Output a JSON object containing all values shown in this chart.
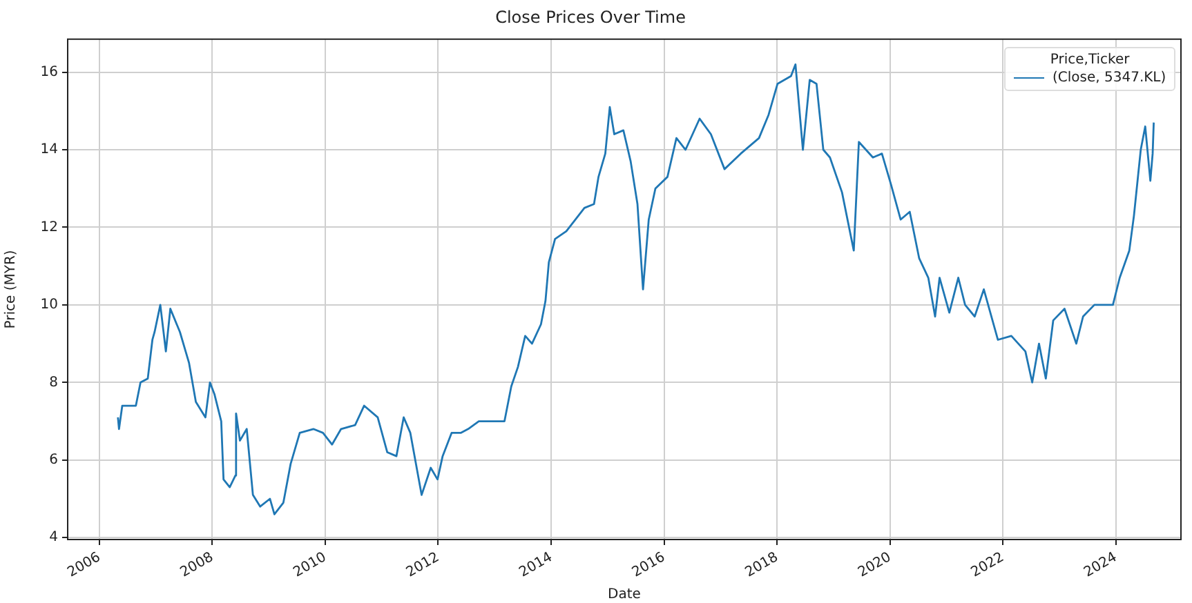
{
  "chart_data": {
    "type": "line",
    "title": "Close Prices Over Time",
    "xlabel": "Date",
    "ylabel": "Price (MYR)",
    "legend_title": "Price,Ticker",
    "legend": "top right",
    "grid": true,
    "marker": "none",
    "line_style": "solid",
    "xlim": [
      "2005-06-10",
      "2025-02-25"
    ],
    "xticks": [
      "2006",
      "2008",
      "2010",
      "2012",
      "2014",
      "2016",
      "2018",
      "2020",
      "2022",
      "2024"
    ],
    "ylim": [
      3.95,
      16.85
    ],
    "yticks": [
      4,
      6,
      8,
      10,
      12,
      14,
      16
    ],
    "x": [
      "2006-05-01",
      "2006-05-08",
      "2006-05-29",
      "2006-08-25",
      "2006-09-24",
      "2006-11-10",
      "2006-12-10",
      "2006-12-24",
      "2007-01-30",
      "2007-03-07",
      "2007-04-05",
      "2007-06-06",
      "2007-08-04",
      "2007-09-17",
      "2007-11-18",
      "2007-12-17",
      "2008-01-15",
      "2008-02-28",
      "2008-03-14",
      "2008-04-23",
      "2008-05-30",
      "2008-06-03",
      "2008-06-28",
      "2008-08-11",
      "2008-09-20",
      "2008-11-06",
      "2009-01-08",
      "2009-02-06",
      "2009-04-05",
      "2009-05-22",
      "2009-07-20",
      "2009-10-16",
      "2009-12-17",
      "2010-02-14",
      "2010-04-13",
      "2010-07-13",
      "2010-09-09",
      "2010-12-06",
      "2011-02-06",
      "2011-04-06",
      "2011-05-23",
      "2011-07-05",
      "2011-09-16",
      "2011-11-14",
      "2011-12-28",
      "2012-01-30",
      "2012-03-28",
      "2012-05-26",
      "2012-07-13",
      "2012-09-20",
      "2013-03-05",
      "2013-04-18",
      "2013-05-31",
      "2013-07-17",
      "2013-08-30",
      "2013-10-27",
      "2013-11-25",
      "2013-12-17",
      "2014-01-26",
      "2014-04-09",
      "2014-06-07",
      "2014-08-04",
      "2014-10-05",
      "2014-11-03",
      "2014-12-17",
      "2015-01-15",
      "2015-02-13",
      "2015-04-13",
      "2015-05-30",
      "2015-07-13",
      "2015-08-18",
      "2015-09-24",
      "2015-11-06",
      "2016-01-23",
      "2016-03-21",
      "2016-05-19",
      "2016-08-18",
      "2016-10-30",
      "2017-01-26",
      "2017-05-11",
      "2017-09-06",
      "2017-11-07",
      "2018-01-04",
      "2018-04-01",
      "2018-04-30",
      "2018-06-17",
      "2018-07-31",
      "2018-09-13",
      "2018-10-27",
      "2018-12-09",
      "2019-02-25",
      "2019-05-12",
      "2019-06-14",
      "2019-09-13",
      "2019-11-10",
      "2020-01-08",
      "2020-03-10",
      "2020-05-08",
      "2020-07-08",
      "2020-09-05",
      "2020-10-19",
      "2020-11-17",
      "2021-01-19",
      "2021-03-18",
      "2021-05-01",
      "2021-07-02",
      "2021-08-30",
      "2021-11-29",
      "2022-02-24",
      "2022-05-26",
      "2022-07-09",
      "2022-08-22",
      "2022-10-05",
      "2022-11-22",
      "2023-02-03",
      "2023-04-20",
      "2023-06-03",
      "2023-08-15",
      "2023-12-13",
      "2024-01-26",
      "2024-03-28",
      "2024-04-27",
      "2024-06-10",
      "2024-07-09",
      "2024-08-11",
      "2024-08-26",
      "2024-09-02"
    ],
    "series": [
      {
        "name": "(Close, 5347.KL)",
        "color": "#1f77b4",
        "values": [
          7.1,
          6.8,
          7.4,
          7.4,
          8.0,
          8.1,
          9.1,
          9.3,
          10.0,
          8.8,
          9.9,
          9.3,
          8.5,
          7.5,
          7.1,
          8.0,
          7.7,
          7.0,
          5.5,
          5.3,
          5.6,
          7.2,
          6.5,
          6.8,
          5.1,
          4.8,
          5.0,
          4.6,
          4.9,
          5.9,
          6.7,
          6.8,
          6.7,
          6.4,
          6.8,
          6.9,
          7.4,
          7.1,
          6.2,
          6.1,
          7.1,
          6.7,
          5.1,
          5.8,
          5.5,
          6.1,
          6.7,
          6.7,
          6.8,
          7.0,
          7.0,
          7.9,
          8.4,
          9.2,
          9.0,
          9.5,
          10.1,
          11.1,
          11.7,
          11.9,
          12.2,
          12.5,
          12.6,
          13.3,
          13.9,
          15.1,
          14.4,
          14.5,
          13.7,
          12.6,
          10.4,
          12.2,
          13.0,
          13.3,
          14.3,
          14.0,
          14.8,
          14.4,
          13.5,
          13.9,
          14.3,
          14.9,
          15.7,
          15.9,
          16.2,
          14.0,
          15.8,
          15.7,
          14.0,
          13.8,
          12.9,
          11.4,
          14.2,
          13.8,
          13.9,
          13.1,
          12.2,
          12.4,
          11.2,
          10.7,
          9.7,
          10.7,
          9.8,
          10.7,
          10.0,
          9.7,
          10.4,
          9.1,
          9.2,
          8.8,
          8.0,
          9.0,
          8.1,
          9.6,
          9.9,
          9.0,
          9.7,
          10.0,
          10.0,
          10.7,
          11.4,
          12.3,
          14.0,
          14.6,
          13.2,
          13.9,
          14.7
        ]
      }
    ]
  }
}
